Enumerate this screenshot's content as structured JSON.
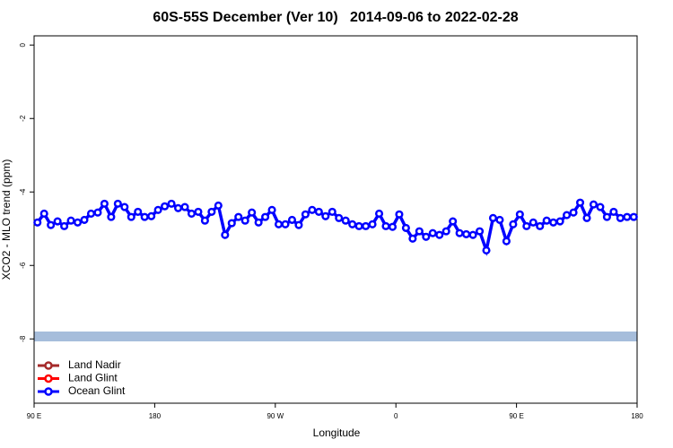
{
  "chart_data": {
    "type": "line",
    "title": "60S-55S December (Ver 10)   2014-09-06 to 2022-02-28",
    "xlabel": "Longitude",
    "ylabel": "XCO2 - MLO trend (ppm)",
    "xlim": [
      90,
      540
    ],
    "ylim": [
      -9.75,
      0.25
    ],
    "xticks": [
      {
        "value": 90,
        "label": "90 E"
      },
      180,
      {
        "value": 270,
        "label": "90 W"
      },
      {
        "value": 360,
        "label": "0"
      },
      {
        "value": 450,
        "label": "90 E"
      },
      {
        "value": 540,
        "label": "180"
      }
    ],
    "yticks": [
      0,
      -2,
      -4,
      -6,
      -8
    ],
    "legend": "bottom-left",
    "x": [
      92.5,
      97.5,
      102.5,
      107.5,
      112.5,
      117.5,
      122.5,
      127.5,
      132.5,
      137.5,
      142.5,
      147.5,
      152.5,
      157.5,
      162.5,
      167.5,
      172.5,
      177.5,
      182.5,
      187.5,
      192.5,
      197.5,
      202.5,
      207.5,
      212.5,
      217.5,
      222.5,
      227.5,
      232.5,
      237.5,
      242.5,
      247.5,
      252.5,
      257.5,
      262.5,
      267.5,
      272.5,
      277.5,
      282.5,
      287.5,
      292.5,
      297.5,
      302.5,
      307.5,
      312.5,
      317.5,
      322.5,
      327.5,
      332.5,
      337.5,
      342.5,
      347.5,
      352.5,
      357.5,
      362.5,
      367.5,
      372.5,
      377.5,
      382.5,
      387.5,
      392.5,
      397.5,
      402.5,
      407.5,
      412.5,
      417.5,
      422.5,
      427.5,
      432.5,
      437.5,
      442.5,
      447.5,
      452.5,
      457.5,
      462.5,
      467.5,
      472.5,
      477.5,
      482.5,
      487.5,
      492.5,
      497.5,
      502.5,
      507.5,
      512.5,
      517.5,
      522.5,
      527.5,
      532.5,
      537.5
    ],
    "series": [
      {
        "name": "Land Nadir",
        "color": "#a52a2a",
        "values": [
          null,
          null,
          null,
          null,
          null,
          null,
          null,
          null,
          null,
          null,
          null,
          null,
          null,
          null,
          null,
          null,
          null,
          null,
          null,
          null,
          null,
          null,
          null,
          null,
          null,
          null,
          null,
          null,
          null,
          null,
          null,
          null,
          null,
          null,
          null,
          null,
          null,
          null,
          null,
          null,
          null,
          null,
          null,
          null,
          null,
          null,
          null,
          null,
          null,
          null,
          null,
          null,
          null,
          null,
          null,
          null,
          null,
          null,
          null,
          null,
          null,
          null,
          null,
          null,
          null,
          null,
          null,
          null,
          null,
          null,
          null,
          null,
          null,
          null,
          null,
          null,
          null,
          null,
          null,
          null,
          null,
          null,
          null,
          null,
          null,
          null,
          null,
          null,
          null,
          null
        ]
      },
      {
        "name": "Land Glint",
        "color": "#ff0000",
        "values": [
          null,
          null,
          null,
          null,
          null,
          null,
          null,
          null,
          null,
          null,
          null,
          null,
          null,
          null,
          null,
          null,
          null,
          null,
          null,
          null,
          null,
          null,
          null,
          null,
          null,
          null,
          null,
          null,
          null,
          null,
          null,
          null,
          null,
          null,
          null,
          null,
          null,
          null,
          null,
          null,
          null,
          null,
          null,
          null,
          null,
          null,
          null,
          null,
          null,
          null,
          null,
          null,
          null,
          null,
          null,
          null,
          null,
          null,
          null,
          null,
          null,
          null,
          null,
          null,
          null,
          null,
          null,
          null,
          null,
          null,
          null,
          null,
          null,
          null,
          null,
          null,
          null,
          null,
          null,
          null,
          null,
          null,
          null,
          null,
          null,
          null,
          null,
          null,
          null,
          null
        ]
      },
      {
        "name": "Ocean Glint",
        "color": "#0000ff",
        "values": [
          -4.83,
          -4.59,
          -4.9,
          -4.8,
          -4.93,
          -4.78,
          -4.83,
          -4.76,
          -4.59,
          -4.56,
          -4.32,
          -4.68,
          -4.32,
          -4.41,
          -4.68,
          -4.54,
          -4.68,
          -4.66,
          -4.49,
          -4.39,
          -4.32,
          -4.44,
          -4.41,
          -4.59,
          -4.54,
          -4.78,
          -4.54,
          -4.37,
          -5.17,
          -4.85,
          -4.68,
          -4.78,
          -4.56,
          -4.83,
          -4.68,
          -4.49,
          -4.88,
          -4.88,
          -4.76,
          -4.9,
          -4.61,
          -4.49,
          -4.54,
          -4.66,
          -4.54,
          -4.71,
          -4.78,
          -4.88,
          -4.93,
          -4.93,
          -4.88,
          -4.59,
          -4.93,
          -4.95,
          -4.61,
          -4.98,
          -5.27,
          -5.07,
          -5.22,
          -5.12,
          -5.17,
          -5.07,
          -4.8,
          -5.12,
          -5.15,
          -5.17,
          -5.07,
          -5.59,
          -4.71,
          -4.76,
          -5.34,
          -4.88,
          -4.61,
          -4.93,
          -4.83,
          -4.93,
          -4.78,
          -4.83,
          -4.8,
          -4.63,
          -4.56,
          -4.29,
          -4.71,
          -4.34,
          -4.41,
          -4.68,
          -4.54,
          -4.71,
          -4.68,
          -4.68
        ]
      }
    ]
  }
}
